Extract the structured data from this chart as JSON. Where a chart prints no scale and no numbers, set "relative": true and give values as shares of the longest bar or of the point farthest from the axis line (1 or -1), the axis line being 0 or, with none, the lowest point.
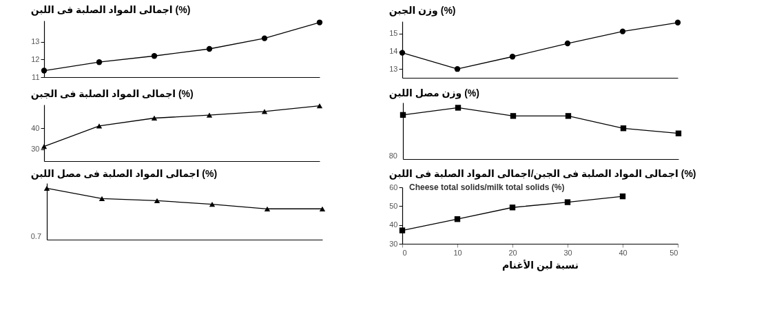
{
  "chart_data": [
    {
      "type": "line",
      "title": "اجمالى المواد الصلبة فى اللبن (%)",
      "categories": [
        null,
        null,
        null,
        null,
        null,
        null
      ],
      "marker": "circle",
      "tick_labels": "y",
      "ylim": [
        11,
        14.2
      ],
      "yticks": [
        11,
        12,
        13
      ],
      "series": [
        {
          "color": "#000000",
          "values": [
            11.37,
            11.85,
            12.2,
            12.6,
            13.2,
            14.1
          ]
        }
      ]
    },
    {
      "type": "line",
      "title": "وزن الجبن (%)",
      "categories": [
        null,
        null,
        null,
        null,
        null,
        null
      ],
      "marker": "circle",
      "tick_labels": "y",
      "ylim": [
        12.5,
        15.7
      ],
      "yticks": [
        13,
        14,
        15
      ],
      "series": [
        {
          "color": "#000000",
          "values": [
            13.92,
            13.0,
            13.7,
            14.45,
            15.13,
            15.63
          ]
        }
      ]
    },
    {
      "type": "line",
      "title": "اجمالى المواد الصلبة فى الجبن (%)",
      "categories": [
        null,
        null,
        null,
        null,
        null,
        null
      ],
      "marker": "triangle",
      "tick_labels": "y",
      "ylim": [
        24.5,
        51
      ],
      "yticks": [
        30,
        40
      ],
      "series": [
        {
          "color": "#000000",
          "values": [
            31.4,
            41,
            44.7,
            46.1,
            47.8,
            50.5
          ]
        }
      ]
    },
    {
      "type": "line",
      "title": "وزن مصل اللبن (%)",
      "categories": [
        null,
        null,
        null,
        null,
        null,
        null
      ],
      "marker": "square",
      "tick_labels": false,
      "relative": true,
      "annotations": [
        "80"
      ],
      "series": [
        {
          "color": "#000000",
          "values": [
            0.86,
            1,
            0.84,
            0.84,
            0.6,
            0.5
          ]
        }
      ]
    },
    {
      "type": "line",
      "title": "اجمالى المواد الصلبة فى مصل اللبن (%)",
      "categories": [
        null,
        null,
        null,
        null,
        null,
        null
      ],
      "marker": "triangle",
      "tick_labels": false,
      "relative": true,
      "annotations": [
        "0.7"
      ],
      "series": [
        {
          "color": "#000000",
          "values": [
            1,
            0.8,
            0.76,
            0.69,
            0.6,
            0.6
          ]
        }
      ]
    },
    {
      "type": "line",
      "title": "اجمالى المواد الصلبة فى الجبن/اجمالى المواد الصلبة فى اللبن (%)",
      "xlabel": "نسبة لبن الأغنام",
      "x": [
        0,
        10,
        20,
        30,
        40
      ],
      "marker": "square",
      "xlim": [
        0,
        50
      ],
      "xticks": [
        0,
        10,
        20,
        30,
        40,
        50
      ],
      "ylim": [
        30,
        60
      ],
      "yticks": [
        30,
        40,
        50,
        60
      ],
      "annotations": [
        "Cheese total solids/milk total solids (%)"
      ],
      "series": [
        {
          "color": "#000000",
          "values": [
            37.1,
            43.1,
            49.3,
            52.1,
            55.2
          ]
        }
      ]
    }
  ]
}
